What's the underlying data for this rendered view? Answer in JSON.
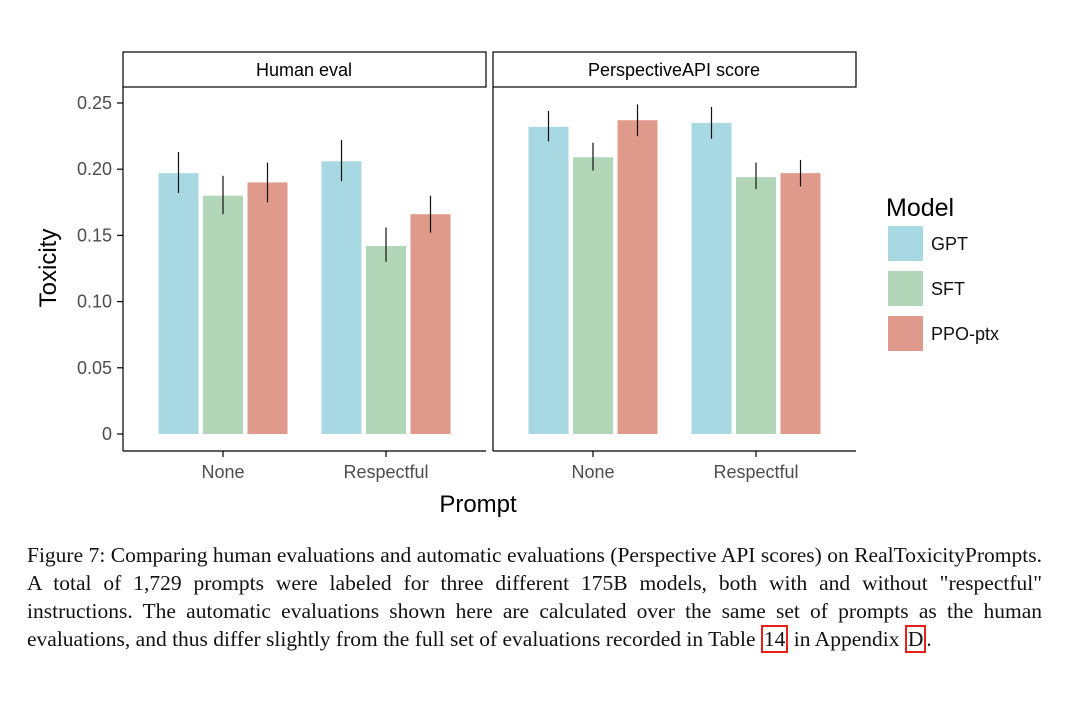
{
  "chart_data": {
    "type": "bar",
    "facets": [
      "Human eval",
      "PerspectiveAPI score"
    ],
    "categories": [
      "None",
      "Respectful"
    ],
    "xlabel": "Prompt",
    "ylabel": "Toxicity",
    "ylim": [
      0,
      0.26
    ],
    "yticks": [
      0,
      0.05,
      0.1,
      0.15,
      0.2,
      0.25
    ],
    "ytick_labels": [
      "0",
      "0.05",
      "0.10",
      "0.15",
      "0.20",
      "0.25"
    ],
    "grid": false,
    "legend": {
      "title": "Model",
      "placement": "right"
    },
    "series": [
      {
        "name": "GPT",
        "color": "#a8d8e2",
        "values": [
          [
            0.197,
            0.206
          ],
          [
            0.232,
            0.235
          ]
        ],
        "err": [
          [
            [
              0.182,
              0.213
            ],
            [
              0.191,
              0.222
            ]
          ],
          [
            [
              0.221,
              0.244
            ],
            [
              0.223,
              0.247
            ]
          ]
        ]
      },
      {
        "name": "SFT",
        "color": "#b1d6b8",
        "values": [
          [
            0.18,
            0.142
          ],
          [
            0.209,
            0.194
          ]
        ],
        "err": [
          [
            [
              0.166,
              0.195
            ],
            [
              0.13,
              0.156
            ]
          ],
          [
            [
              0.199,
              0.22
            ],
            [
              0.185,
              0.205
            ]
          ]
        ]
      },
      {
        "name": "PPO-ptx",
        "color": "#e09a8c",
        "values": [
          [
            0.19,
            0.166
          ],
          [
            0.237,
            0.197
          ]
        ],
        "err": [
          [
            [
              0.175,
              0.205
            ],
            [
              0.152,
              0.18
            ]
          ],
          [
            [
              0.225,
              0.249
            ],
            [
              0.187,
              0.207
            ]
          ]
        ]
      }
    ]
  },
  "caption": {
    "text_before_ref1": "Figure 7: Comparing human evaluations and automatic evaluations (Perspective API scores) on RealToxicityPrompts. A total of 1,729 prompts were labeled for three different 175B models, both with and without \"respectful\" instructions. The automatic evaluations shown here are calculated over the same set of prompts as the human evaluations, and thus differ slightly from the full set of evaluations recorded in Table ",
    "ref1": "14",
    "text_between": " in Appendix ",
    "ref2": "D",
    "text_after": "."
  }
}
